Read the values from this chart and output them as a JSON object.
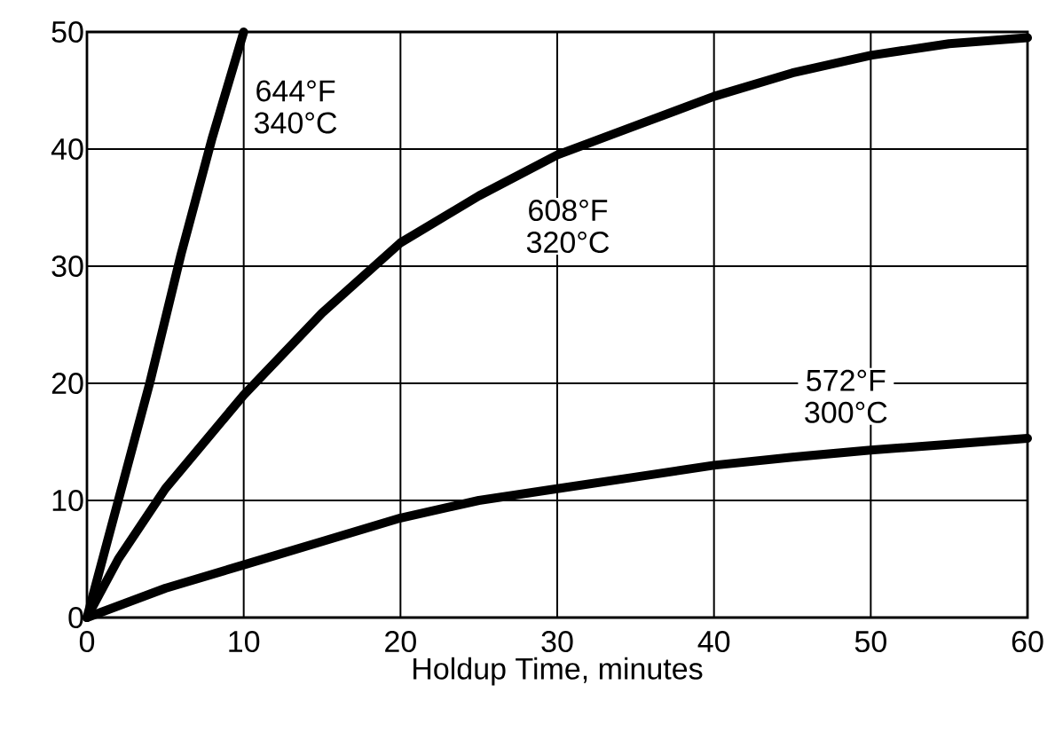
{
  "chart_data": {
    "type": "line",
    "xlabel": "Holdup Time, minutes",
    "xlim": [
      0,
      60
    ],
    "ylim": [
      0,
      50
    ],
    "xticks": [
      0,
      10,
      20,
      30,
      40,
      50,
      60
    ],
    "yticks": [
      0,
      10,
      20,
      30,
      40,
      50
    ],
    "grid": true,
    "series": [
      {
        "name": "644°F 340°C",
        "color": "#000000",
        "x": [
          0,
          2,
          4,
          6,
          8,
          10
        ],
        "values": [
          0,
          10,
          20,
          31,
          41,
          50
        ]
      },
      {
        "name": "608°F 320°C",
        "color": "#000000",
        "x": [
          0,
          2,
          5,
          10,
          15,
          20,
          25,
          30,
          35,
          40,
          45,
          50,
          55,
          60
        ],
        "values": [
          0,
          5,
          11,
          19,
          26,
          32,
          36,
          39.5,
          42,
          44.5,
          46.5,
          48,
          49,
          49.5
        ]
      },
      {
        "name": "572°F 300°C",
        "color": "#000000",
        "x": [
          0,
          5,
          10,
          15,
          20,
          25,
          30,
          35,
          40,
          45,
          50,
          55,
          60
        ],
        "values": [
          0,
          2.5,
          4.5,
          6.5,
          8.5,
          10,
          11,
          12,
          13,
          13.7,
          14.3,
          14.8,
          15.3
        ]
      }
    ]
  }
}
